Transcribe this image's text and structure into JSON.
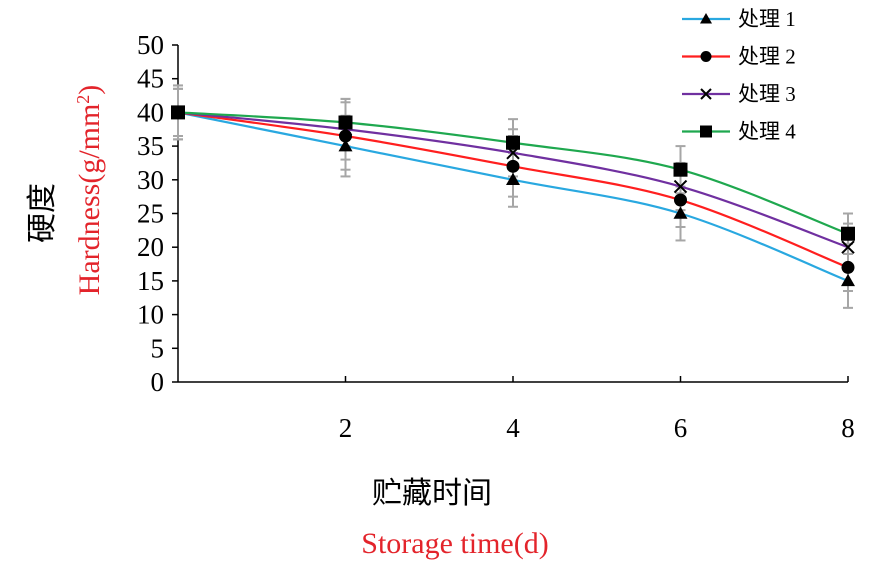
{
  "chart_data": {
    "type": "line",
    "x": [
      0,
      2,
      4,
      6,
      8
    ],
    "xticks": [
      "2",
      "4",
      "6",
      "8"
    ],
    "xlim": [
      0,
      8
    ],
    "ylim": [
      0,
      50
    ],
    "yticks": [
      "0",
      "5",
      "10",
      "15",
      "20",
      "25",
      "30",
      "35",
      "40",
      "45",
      "50"
    ],
    "xlabel_cn": "贮藏时间",
    "xlabel_en": "Storage time(d)",
    "ylabel_cn": "硬度",
    "ylabel_en_prefix": "Hardness(g/mm",
    "ylabel_en_sup": "2",
    "ylabel_en_suffix": ")",
    "label_en_color": "#e3242b",
    "grid": false,
    "legend_position": "top-right",
    "series": [
      {
        "name": "处理 1",
        "color": "#29a8e0",
        "marker": "triangle",
        "values": [
          40,
          35,
          30,
          25,
          15
        ],
        "errors": [
          4,
          4.5,
          4,
          4,
          4
        ]
      },
      {
        "name": "处理 2",
        "color": "#ff1f1f",
        "marker": "circle",
        "values": [
          40,
          36.5,
          32,
          27,
          17
        ],
        "errors": [
          4,
          5,
          4.5,
          4,
          3.5
        ]
      },
      {
        "name": "处理 3",
        "color": "#7030a0",
        "marker": "x",
        "values": [
          40,
          37.5,
          34,
          29,
          20
        ],
        "errors": [
          3.5,
          4.5,
          3.5,
          3.5,
          3.5
        ]
      },
      {
        "name": "处理 4",
        "color": "#1fa84f",
        "marker": "square",
        "values": [
          40,
          38.5,
          35.5,
          31.5,
          22
        ],
        "errors": [
          3.5,
          3.5,
          3.5,
          3.5,
          3
        ]
      }
    ]
  }
}
